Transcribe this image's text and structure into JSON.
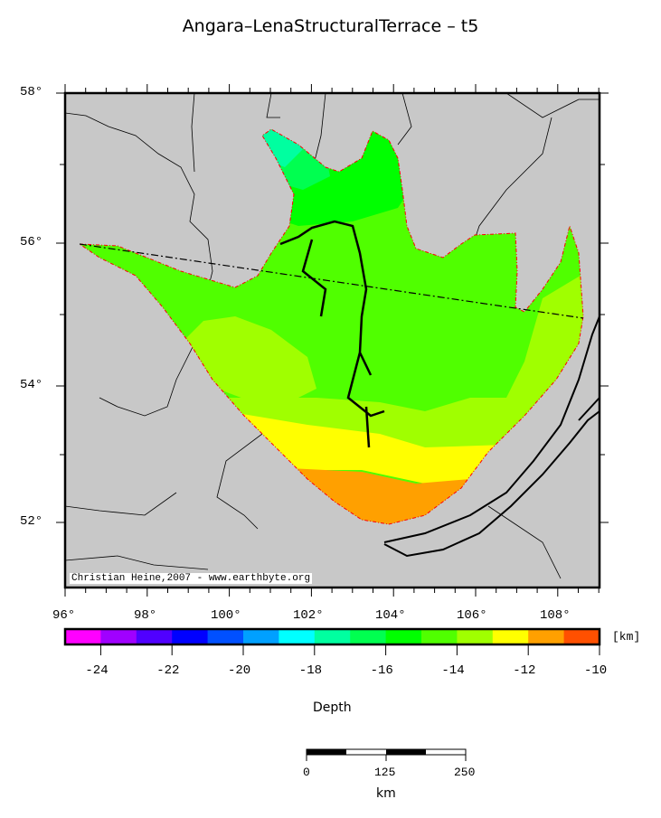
{
  "title": "Angara–LenaStructuralTerrace – t5",
  "map": {
    "lon_ticks": [
      "96°",
      "98°",
      "100°",
      "102°",
      "104°",
      "106°",
      "108°"
    ],
    "lat_ticks": [
      "58°",
      "56°",
      "54°",
      "52°"
    ],
    "credit": "Christian Heine,2007 - www.earthbyte.org",
    "land_color": "#c8c8c8",
    "outline_color": "#ff0000"
  },
  "colorbar": {
    "unit": "[km]",
    "range": [
      -25,
      -10
    ],
    "ticks": [
      "-24",
      "-22",
      "-20",
      "-18",
      "-16",
      "-14",
      "-12",
      "-10"
    ],
    "colors": [
      "#ff00ff",
      "#a000ff",
      "#5000ff",
      "#0000ff",
      "#0050ff",
      "#00a0ff",
      "#00ffff",
      "#00ffa0",
      "#00ff50",
      "#00ff00",
      "#50ff00",
      "#a0ff00",
      "#ffff00",
      "#ffa000",
      "#ff5000"
    ],
    "label": "Depth"
  },
  "scalebar": {
    "ticks": [
      "0",
      "125",
      "250"
    ],
    "unit": "km"
  }
}
